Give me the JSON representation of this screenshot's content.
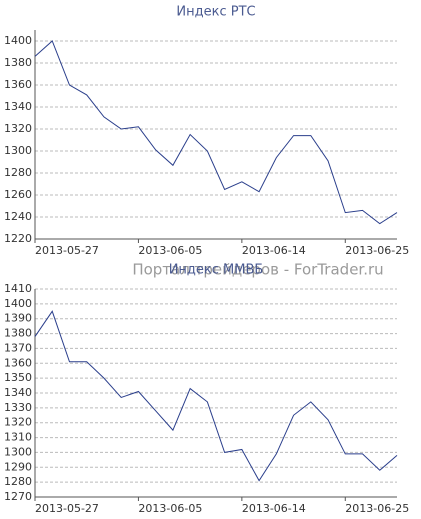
{
  "watermark": "Портал трейдеров - ForTrader.ru",
  "chart_data": [
    {
      "type": "line",
      "title": "Индекс РТС",
      "categories": [
        "2013-05-27",
        null,
        null,
        null,
        null,
        null,
        "2013-06-05",
        null,
        null,
        null,
        null,
        null,
        "2013-06-14",
        null,
        null,
        null,
        null,
        null,
        "2013-06-25",
        null,
        null,
        null
      ],
      "series": [
        {
          "name": "РТС",
          "color": "#2b3f8c",
          "values": [
            1386,
            1400,
            1360,
            1351,
            1331,
            1320,
            1322,
            1301,
            1287,
            1315,
            1300,
            1265,
            1272,
            1263,
            1294,
            1314,
            1314,
            1291,
            1244,
            1246,
            1234,
            1244
          ]
        }
      ],
      "ylim": [
        1220,
        1410
      ],
      "yticks": [
        1220,
        1240,
        1260,
        1280,
        1300,
        1320,
        1340,
        1360,
        1380,
        1400
      ],
      "grid": true
    },
    {
      "type": "line",
      "title": "Индекс ММВБ",
      "categories": [
        "2013-05-27",
        null,
        null,
        null,
        null,
        null,
        "2013-06-05",
        null,
        null,
        null,
        null,
        null,
        "2013-06-14",
        null,
        null,
        null,
        null,
        null,
        "2013-06-25",
        null,
        null,
        null
      ],
      "series": [
        {
          "name": "ММВБ",
          "color": "#2b3f8c",
          "values": [
            1378,
            1395,
            1361,
            1361,
            1350,
            1337,
            1341,
            1328,
            1315,
            1343,
            1334,
            1300,
            1302,
            1281,
            1299,
            1325,
            1334,
            1322,
            1299,
            1299,
            1288,
            1298
          ]
        }
      ],
      "ylim": [
        1270,
        1410
      ],
      "yticks": [
        1270,
        1280,
        1290,
        1300,
        1310,
        1320,
        1330,
        1340,
        1350,
        1360,
        1370,
        1380,
        1390,
        1400,
        1410
      ],
      "grid": true
    }
  ]
}
